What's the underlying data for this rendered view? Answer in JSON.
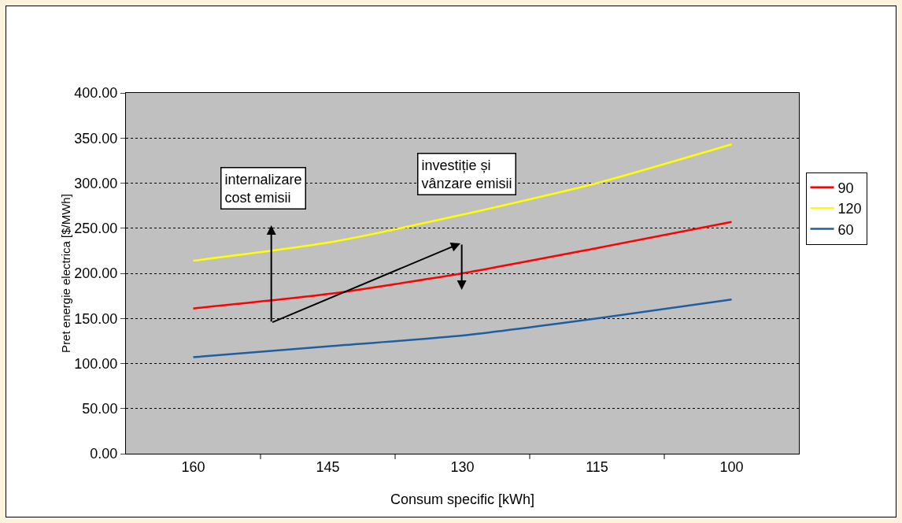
{
  "chart_data": {
    "type": "line",
    "xlabel": "Consum specific [kWh]",
    "ylabel": "Pret energie electrica [$/MWh]",
    "categories": [
      "160",
      "145",
      "130",
      "115",
      "100"
    ],
    "series": [
      {
        "name": "90",
        "color": "#ff0000",
        "values": [
          161,
          177,
          200,
          228,
          257
        ]
      },
      {
        "name": "120",
        "color": "#ffff00",
        "values": [
          214,
          234,
          265,
          300,
          343
        ]
      },
      {
        "name": "60",
        "color": "#1f5f9f",
        "values": [
          107,
          119,
          131,
          150,
          171
        ]
      }
    ],
    "ylim": [
      0,
      400
    ],
    "yticks": [
      {
        "value": 0,
        "label": "0.00"
      },
      {
        "value": 50,
        "label": "50.00"
      },
      {
        "value": 100,
        "label": "100.00"
      },
      {
        "value": 150,
        "label": "150.00"
      },
      {
        "value": 200,
        "label": "200.00"
      },
      {
        "value": 250,
        "label": "250.00"
      },
      {
        "value": 300,
        "label": "300.00"
      },
      {
        "value": 350,
        "label": "350.00"
      },
      {
        "value": 400,
        "label": "400.00"
      }
    ],
    "grid": "y",
    "legend": "right",
    "line_style": "solid",
    "annotations": [
      "internalizare\ncost emisii",
      "investiție și\nvânzare emisii"
    ]
  }
}
